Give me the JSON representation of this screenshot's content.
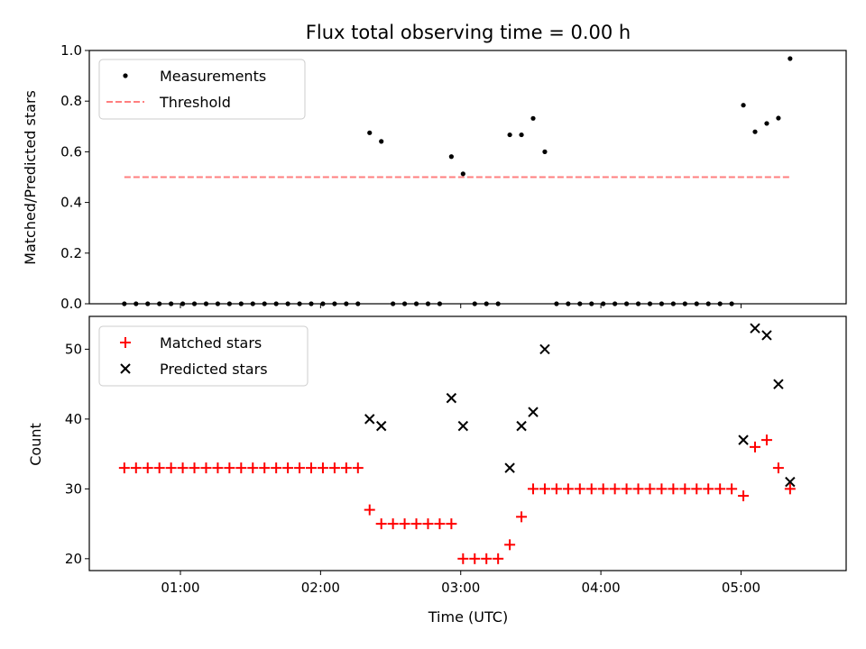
{
  "chart_data": [
    {
      "type": "scatter",
      "title": "Flux total observing time = 0.00 h",
      "ylabel": "Matched/Predicted stars",
      "xlabel": "",
      "xlim": [
        "00:21",
        "05:45"
      ],
      "ylim": [
        0,
        1.0
      ],
      "yticks": [
        0.0,
        0.2,
        0.4,
        0.6,
        0.8,
        1.0
      ],
      "ytick_labels": [
        "0.0",
        "0.2",
        "0.4",
        "0.6",
        "0.8",
        "1.0"
      ],
      "grid": false,
      "legend_position": "upper-left",
      "series": [
        {
          "name": "Measurements",
          "kind": "scatter",
          "marker": "dot",
          "color": "#000000",
          "points": [
            [
              "00:36",
              0.0
            ],
            [
              "00:41",
              0.0
            ],
            [
              "00:46",
              0.0
            ],
            [
              "00:51",
              0.0
            ],
            [
              "00:56",
              0.0
            ],
            [
              "01:01",
              0.0
            ],
            [
              "01:06",
              0.0
            ],
            [
              "01:11",
              0.0
            ],
            [
              "01:16",
              0.0
            ],
            [
              "01:21",
              0.0
            ],
            [
              "01:26",
              0.0
            ],
            [
              "01:31",
              0.0
            ],
            [
              "01:36",
              0.0
            ],
            [
              "01:41",
              0.0
            ],
            [
              "01:46",
              0.0
            ],
            [
              "01:51",
              0.0
            ],
            [
              "01:56",
              0.0
            ],
            [
              "02:01",
              0.0
            ],
            [
              "02:06",
              0.0
            ],
            [
              "02:11",
              0.0
            ],
            [
              "02:16",
              0.0
            ],
            [
              "02:21",
              0.675
            ],
            [
              "02:26",
              0.641
            ],
            [
              "02:31",
              0.0
            ],
            [
              "02:36",
              0.0
            ],
            [
              "02:41",
              0.0
            ],
            [
              "02:46",
              0.0
            ],
            [
              "02:51",
              0.0
            ],
            [
              "02:56",
              0.581
            ],
            [
              "03:01",
              0.513
            ],
            [
              "03:06",
              0.0
            ],
            [
              "03:11",
              0.0
            ],
            [
              "03:16",
              0.0
            ],
            [
              "03:21",
              0.667
            ],
            [
              "03:26",
              0.667
            ],
            [
              "03:31",
              0.732
            ],
            [
              "03:36",
              0.6
            ],
            [
              "03:41",
              0.0
            ],
            [
              "03:46",
              0.0
            ],
            [
              "03:51",
              0.0
            ],
            [
              "03:56",
              0.0
            ],
            [
              "04:01",
              0.0
            ],
            [
              "04:06",
              0.0
            ],
            [
              "04:11",
              0.0
            ],
            [
              "04:16",
              0.0
            ],
            [
              "04:21",
              0.0
            ],
            [
              "04:26",
              0.0
            ],
            [
              "04:31",
              0.0
            ],
            [
              "04:36",
              0.0
            ],
            [
              "04:41",
              0.0
            ],
            [
              "04:46",
              0.0
            ],
            [
              "04:51",
              0.0
            ],
            [
              "04:56",
              0.0
            ],
            [
              "05:01",
              0.784
            ],
            [
              "05:06",
              0.679
            ],
            [
              "05:11",
              0.712
            ],
            [
              "05:16",
              0.733
            ],
            [
              "05:21",
              0.968
            ]
          ]
        },
        {
          "name": "Threshold",
          "kind": "line",
          "style": "dashed",
          "color": "#ff7f7f",
          "points": [
            [
              "00:36",
              0.5
            ],
            [
              "05:21",
              0.5
            ]
          ]
        }
      ]
    },
    {
      "type": "scatter",
      "title": "",
      "xlabel": "Time (UTC)",
      "ylabel": "Count",
      "xlim": [
        "00:21",
        "05:45"
      ],
      "ylim": [
        18.3,
        54.7
      ],
      "xticks": [
        "01:00",
        "02:00",
        "03:00",
        "04:00",
        "05:00"
      ],
      "yticks": [
        20,
        30,
        40,
        50
      ],
      "ytick_labels": [
        "20",
        "30",
        "40",
        "50"
      ],
      "grid": false,
      "legend_position": "upper-left",
      "series": [
        {
          "name": "Matched stars",
          "kind": "scatter",
          "marker": "plus",
          "color": "#ff0000",
          "points": [
            [
              "00:36",
              33
            ],
            [
              "00:41",
              33
            ],
            [
              "00:46",
              33
            ],
            [
              "00:51",
              33
            ],
            [
              "00:56",
              33
            ],
            [
              "01:01",
              33
            ],
            [
              "01:06",
              33
            ],
            [
              "01:11",
              33
            ],
            [
              "01:16",
              33
            ],
            [
              "01:21",
              33
            ],
            [
              "01:26",
              33
            ],
            [
              "01:31",
              33
            ],
            [
              "01:36",
              33
            ],
            [
              "01:41",
              33
            ],
            [
              "01:46",
              33
            ],
            [
              "01:51",
              33
            ],
            [
              "01:56",
              33
            ],
            [
              "02:01",
              33
            ],
            [
              "02:06",
              33
            ],
            [
              "02:11",
              33
            ],
            [
              "02:16",
              33
            ],
            [
              "02:21",
              27
            ],
            [
              "02:26",
              25
            ],
            [
              "02:31",
              25
            ],
            [
              "02:36",
              25
            ],
            [
              "02:41",
              25
            ],
            [
              "02:46",
              25
            ],
            [
              "02:51",
              25
            ],
            [
              "02:56",
              25
            ],
            [
              "03:01",
              20
            ],
            [
              "03:06",
              20
            ],
            [
              "03:11",
              20
            ],
            [
              "03:16",
              20
            ],
            [
              "03:21",
              22
            ],
            [
              "03:26",
              26
            ],
            [
              "03:31",
              30
            ],
            [
              "03:36",
              30
            ],
            [
              "03:41",
              30
            ],
            [
              "03:46",
              30
            ],
            [
              "03:51",
              30
            ],
            [
              "03:56",
              30
            ],
            [
              "04:01",
              30
            ],
            [
              "04:06",
              30
            ],
            [
              "04:11",
              30
            ],
            [
              "04:16",
              30
            ],
            [
              "04:21",
              30
            ],
            [
              "04:26",
              30
            ],
            [
              "04:31",
              30
            ],
            [
              "04:36",
              30
            ],
            [
              "04:41",
              30
            ],
            [
              "04:46",
              30
            ],
            [
              "04:51",
              30
            ],
            [
              "04:56",
              30
            ],
            [
              "05:01",
              29
            ],
            [
              "05:06",
              36
            ],
            [
              "05:11",
              37
            ],
            [
              "05:16",
              33
            ],
            [
              "05:21",
              30
            ]
          ]
        },
        {
          "name": "Predicted stars",
          "kind": "scatter",
          "marker": "x",
          "color": "#000000",
          "points": [
            [
              "02:21",
              40
            ],
            [
              "02:26",
              39
            ],
            [
              "02:56",
              43
            ],
            [
              "03:01",
              39
            ],
            [
              "03:21",
              33
            ],
            [
              "03:26",
              39
            ],
            [
              "03:31",
              41
            ],
            [
              "03:36",
              50
            ],
            [
              "05:01",
              37
            ],
            [
              "05:06",
              53
            ],
            [
              "05:11",
              52
            ],
            [
              "05:16",
              45
            ],
            [
              "05:21",
              31
            ]
          ]
        }
      ]
    }
  ]
}
